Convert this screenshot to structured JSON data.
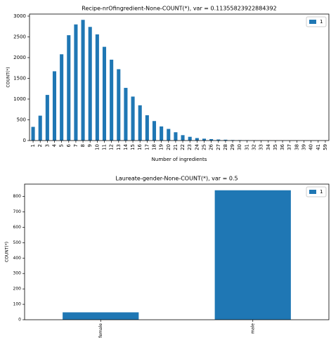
{
  "chart_data": [
    {
      "type": "bar",
      "title": "Recipe-nrOfingredient-None-COUNT(*), var = 0.11355823922884392",
      "x_label": "Number of ingredients",
      "y_label": "COUNT(*)",
      "categories": [
        "1",
        "2",
        "3",
        "4",
        "5",
        "6",
        "7",
        "8",
        "9",
        "10",
        "11",
        "12",
        "13",
        "14",
        "15",
        "16",
        "17",
        "18",
        "19",
        "20",
        "21",
        "22",
        "23",
        "24",
        "25",
        "26",
        "27",
        "28",
        "29",
        "30",
        "31",
        "32",
        "33",
        "34",
        "35",
        "36",
        "37",
        "38",
        "39",
        "40",
        "41",
        "59"
      ],
      "series": [
        {
          "name": "1",
          "color": "#1f77b4",
          "values": [
            330,
            600,
            1100,
            1670,
            2080,
            2540,
            2800,
            2910,
            2740,
            2560,
            2260,
            1950,
            1720,
            1270,
            1060,
            850,
            610,
            470,
            340,
            280,
            200,
            130,
            90,
            60,
            45,
            35,
            25,
            20,
            12,
            10,
            8,
            5,
            4,
            3,
            2,
            2,
            1,
            1,
            1,
            1,
            1,
            1
          ]
        }
      ],
      "ylim": [
        0,
        3050
      ],
      "yticks": [
        0,
        500,
        1000,
        1500,
        2000,
        2500,
        3000
      ],
      "legend": "upper right"
    },
    {
      "type": "bar",
      "title": "Laureate-gender-None-COUNT(*), var = 0.5",
      "y_label": "COUNT(*)",
      "categories": [
        "female",
        "male"
      ],
      "series": [
        {
          "name": "1",
          "color": "#1f77b4",
          "values": [
            48,
            840
          ]
        }
      ],
      "ylim": [
        0,
        880
      ],
      "yticks": [
        0,
        100,
        200,
        300,
        400,
        500,
        600,
        700,
        800
      ],
      "legend": "upper right"
    }
  ]
}
